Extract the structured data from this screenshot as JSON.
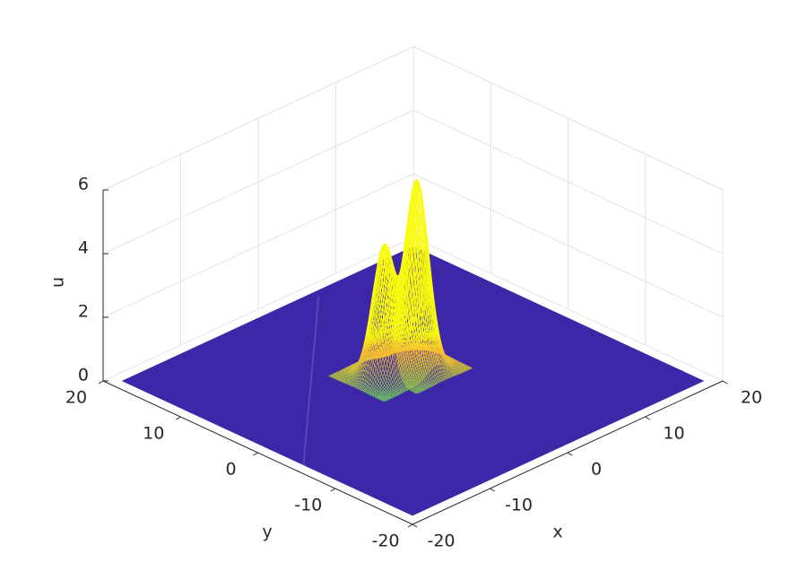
{
  "chart_data": {
    "type": "surface3d",
    "xlabel": "x",
    "ylabel": "y",
    "zlabel": "u",
    "xlim": [
      -20,
      20
    ],
    "ylim": [
      -20,
      20
    ],
    "zlim": [
      0,
      6
    ],
    "xticks": [
      -20,
      -10,
      0,
      10,
      20
    ],
    "yticks": [
      -20,
      -10,
      0,
      10,
      20
    ],
    "zticks": [
      0,
      2,
      4,
      6
    ],
    "floor_color": "#3e26a8",
    "grid": true,
    "peaks": [
      {
        "x": -1.2,
        "y": 2.5,
        "u": 4.1
      },
      {
        "x": 2,
        "y": 1.5,
        "u": 5.9
      }
    ]
  }
}
